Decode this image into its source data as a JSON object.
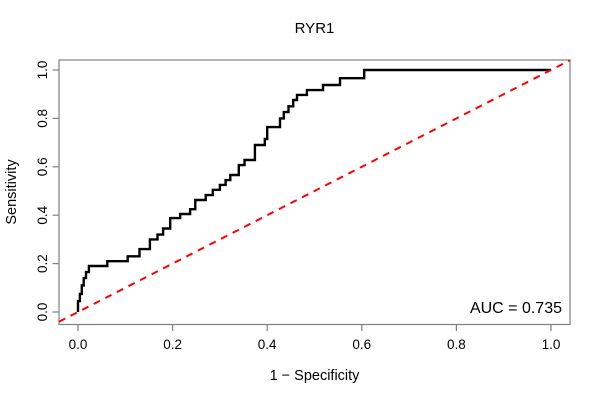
{
  "figure": {
    "background": "#ffffff",
    "frame_color": "#808080",
    "text_color": "#000000"
  },
  "chart_data": {
    "type": "line",
    "subtype": "roc-step-curve",
    "title": "RYR1",
    "xlabel": "1 − Specificity",
    "ylabel": "Sensitivity",
    "xlim": [
      0,
      1
    ],
    "ylim": [
      0,
      1
    ],
    "grid": false,
    "legend_position": "none",
    "x_ticks": [
      "0.0",
      "0.2",
      "0.4",
      "0.6",
      "0.8",
      "1.0"
    ],
    "y_ticks": [
      "0.0",
      "0.2",
      "0.4",
      "0.6",
      "0.8",
      "1.0"
    ],
    "annotations": [
      {
        "text": "AUC = 0.735",
        "position": "bottom-right"
      }
    ],
    "auc": 0.735,
    "series": [
      {
        "name": "ROC curve",
        "draw": "step",
        "color": "#000000",
        "line_width": 2.4,
        "points": [
          [
            0.0,
            0.0
          ],
          [
            0.004,
            0.045
          ],
          [
            0.008,
            0.075
          ],
          [
            0.012,
            0.11
          ],
          [
            0.017,
            0.14
          ],
          [
            0.023,
            0.165
          ],
          [
            0.062,
            0.19
          ],
          [
            0.105,
            0.21
          ],
          [
            0.13,
            0.23
          ],
          [
            0.152,
            0.26
          ],
          [
            0.168,
            0.3
          ],
          [
            0.18,
            0.32
          ],
          [
            0.195,
            0.345
          ],
          [
            0.216,
            0.388
          ],
          [
            0.237,
            0.405
          ],
          [
            0.248,
            0.425
          ],
          [
            0.27,
            0.463
          ],
          [
            0.285,
            0.483
          ],
          [
            0.3,
            0.505
          ],
          [
            0.312,
            0.525
          ],
          [
            0.322,
            0.545
          ],
          [
            0.34,
            0.566
          ],
          [
            0.352,
            0.607
          ],
          [
            0.374,
            0.628
          ],
          [
            0.395,
            0.69
          ],
          [
            0.4,
            0.715
          ],
          [
            0.427,
            0.764
          ],
          [
            0.435,
            0.8
          ],
          [
            0.445,
            0.826
          ],
          [
            0.455,
            0.85
          ],
          [
            0.463,
            0.876
          ],
          [
            0.484,
            0.897
          ],
          [
            0.518,
            0.917
          ],
          [
            0.554,
            0.938
          ],
          [
            0.605,
            0.966
          ],
          [
            1.0,
            1.0
          ]
        ]
      },
      {
        "name": "Chance diagonal",
        "draw": "straight",
        "color": "#ff0000",
        "line_width": 2,
        "dash": [
          7,
          6
        ],
        "points": [
          [
            0,
            0
          ],
          [
            1,
            1
          ]
        ]
      }
    ]
  }
}
